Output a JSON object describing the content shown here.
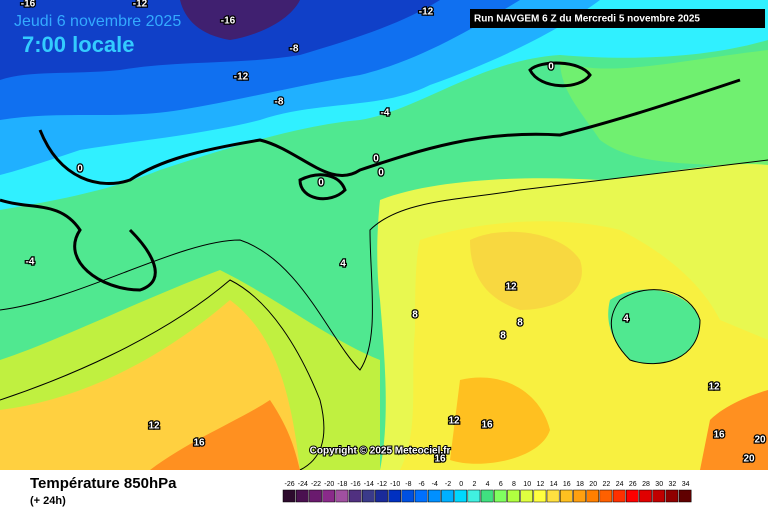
{
  "header": {
    "date": "Jeudi 6 novembre 2025",
    "time": "7:00 locale",
    "run": "Run NAVGEM 6 Z du Mercredi 5 novembre 2025"
  },
  "copyright": "Copyright © 2025 Meteociel.fr",
  "footer": {
    "title": "Température 850hPa",
    "subtitle": "(+ 24h)"
  },
  "contour_labels": [
    -16,
    -12,
    -16,
    -12,
    -8,
    -12,
    -8,
    -4,
    0,
    0,
    0,
    0,
    0,
    -4,
    4,
    8,
    12,
    8,
    8,
    4,
    12,
    12,
    16,
    12,
    16,
    16,
    16,
    20,
    20
  ],
  "legend": {
    "ticks": [
      -26,
      -24,
      -22,
      -20,
      -18,
      -16,
      -14,
      -12,
      -10,
      -8,
      -6,
      -4,
      -2,
      0,
      2,
      4,
      6,
      8,
      10,
      12,
      14,
      16,
      18,
      20,
      22,
      24,
      26,
      28,
      30,
      32,
      34
    ],
    "colors": [
      "#2d0a2d",
      "#4a1050",
      "#6a1a6e",
      "#8a2a8a",
      "#a050a0",
      "#503080",
      "#3a3a8a",
      "#1a2a9a",
      "#0030c0",
      "#0050e0",
      "#0070ff",
      "#0090ff",
      "#00b0ff",
      "#00d8ff",
      "#40f0e0",
      "#40e080",
      "#80ff60",
      "#b0ff40",
      "#e0ff40",
      "#ffff40",
      "#ffe040",
      "#ffc020",
      "#ffa010",
      "#ff8000",
      "#ff6000",
      "#ff3000",
      "#ff0000",
      "#e00000",
      "#c00000",
      "#900000",
      "#600000"
    ]
  }
}
